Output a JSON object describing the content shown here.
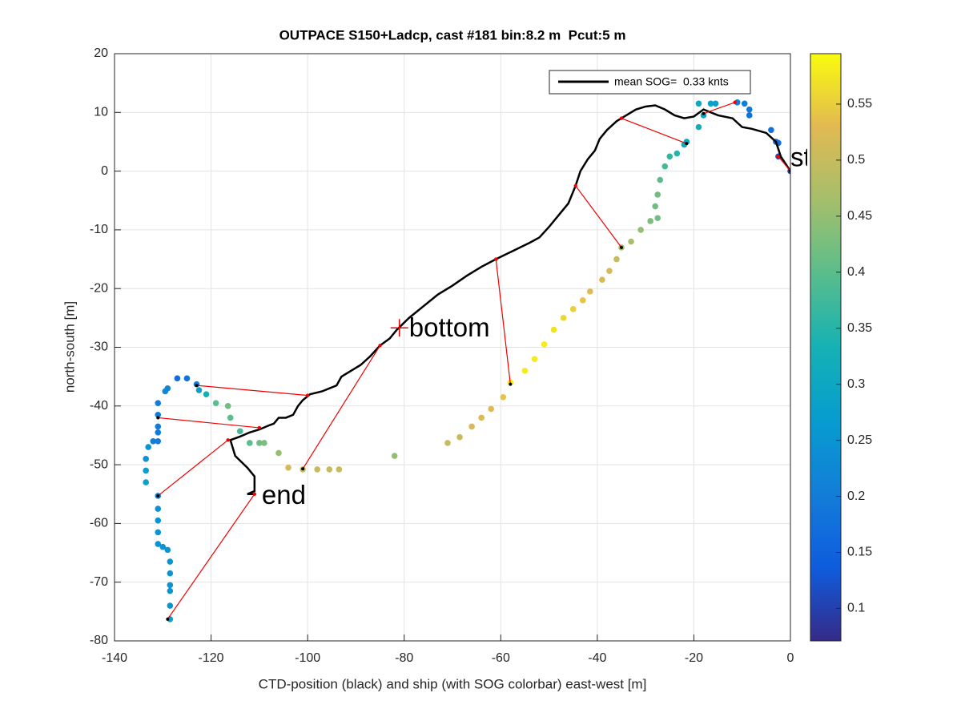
{
  "chart_data": {
    "type": "scatter",
    "title": "OUTPACE S150+Ladcp, cast #181 bin:8.2 m  Pcut:5 m",
    "xlabel": "CTD-position (black) and ship (with SOG colorbar) east-west [m]",
    "ylabel": "north-south [m]",
    "xlim": [
      -140,
      0
    ],
    "ylim": [
      -80,
      20
    ],
    "xticks": [
      -140,
      -120,
      -100,
      -80,
      -60,
      -40,
      -20,
      0
    ],
    "yticks": [
      -80,
      -70,
      -60,
      -50,
      -40,
      -30,
      -20,
      -10,
      0,
      10,
      20
    ],
    "grid": true,
    "clim": [
      0.071,
      0.595
    ],
    "cticks": [
      0.1,
      0.15,
      0.2,
      0.25,
      0.3,
      0.35,
      0.4,
      0.45,
      0.5,
      0.55
    ],
    "legend": {
      "position": "upper right",
      "entries": [
        "mean SOG=  0.33 knts"
      ]
    },
    "ship": {
      "x": [
        0,
        -2.5,
        -2.5,
        -3,
        -4,
        -8.5,
        -8.5,
        -9.5,
        -11,
        -15.5,
        -16.5,
        -18,
        -19,
        -19,
        -21.5,
        -22,
        -23.5,
        -25,
        -26,
        -27,
        -27.5,
        -28,
        -27.5,
        -29,
        -31,
        -33,
        -35,
        -36,
        -37.5,
        -39,
        -41.5,
        -43,
        -45,
        -47,
        -49,
        -51,
        -53,
        -55,
        -58,
        -59.5,
        -62,
        -64,
        -66,
        -68.5,
        -71,
        -82,
        -93.5,
        -95.5,
        -98,
        -101,
        -104,
        -106,
        -109,
        -110,
        -112,
        -114,
        -116,
        -116.5,
        -119,
        -121,
        -122.5,
        -123,
        -125,
        -127,
        -129,
        -129.5,
        -131,
        -131,
        -131,
        -131,
        -131,
        -132,
        -133,
        -133.5,
        -133.5,
        -133.5,
        -131,
        -131,
        -131,
        -131,
        -131,
        -130,
        -129,
        -128.5,
        -128.5,
        -128.5,
        -128.5,
        -128.5,
        -128.5
      ],
      "y": [
        0,
        2.5,
        4.8,
        5,
        7,
        9.5,
        10.5,
        11.5,
        11.7,
        11.5,
        11.5,
        9.5,
        7.5,
        11.5,
        5,
        4.5,
        3,
        2.5,
        0.8,
        -1.5,
        -4,
        -6,
        -8,
        -8.5,
        -10,
        -12,
        -13,
        -15,
        -17,
        -18.5,
        -20.5,
        -22,
        -23.5,
        -25,
        -27,
        -29.5,
        -32,
        -34,
        -36,
        -38.5,
        -40.5,
        -42,
        -43.5,
        -45.3,
        -46.3,
        -48.5,
        -50.8,
        -50.8,
        -50.8,
        -50.8,
        -50.5,
        -48,
        -46.3,
        -46.3,
        -46.3,
        -44.3,
        -42,
        -40,
        -39.5,
        -38,
        -37.3,
        -36.3,
        -35.3,
        -35.3,
        -37,
        -37.5,
        -39.5,
        -41.5,
        -43.5,
        -44.5,
        -46,
        -46,
        -47,
        -49,
        -51,
        -53,
        -55.3,
        -57.5,
        -59.5,
        -61.5,
        -63.5,
        -64,
        -64.5,
        -66.5,
        -68.5,
        -70.5,
        -71.5,
        -74,
        -76.3
      ],
      "values": [
        0.1,
        0.12,
        0.17,
        0.17,
        0.18,
        0.18,
        0.19,
        0.2,
        0.2,
        0.28,
        0.28,
        0.3,
        0.32,
        0.3,
        0.3,
        0.31,
        0.35,
        0.36,
        0.38,
        0.4,
        0.42,
        0.42,
        0.42,
        0.43,
        0.45,
        0.47,
        0.47,
        0.5,
        0.52,
        0.52,
        0.53,
        0.54,
        0.55,
        0.56,
        0.57,
        0.58,
        0.58,
        0.58,
        0.58,
        0.54,
        0.53,
        0.52,
        0.52,
        0.5,
        0.5,
        0.45,
        0.5,
        0.5,
        0.5,
        0.5,
        0.52,
        0.45,
        0.43,
        0.42,
        0.4,
        0.38,
        0.4,
        0.42,
        0.4,
        0.33,
        0.28,
        0.2,
        0.18,
        0.17,
        0.22,
        0.22,
        0.2,
        0.2,
        0.2,
        0.2,
        0.2,
        0.2,
        0.25,
        0.25,
        0.27,
        0.28,
        0.22,
        0.24,
        0.25,
        0.25,
        0.25,
        0.25,
        0.25,
        0.25,
        0.25,
        0.25,
        0.25,
        0.25,
        0.28
      ]
    },
    "ctd": {
      "x": [
        0,
        -2,
        -3,
        -5,
        -8,
        -10,
        -12,
        -15,
        -18,
        -20,
        -22,
        -24,
        -26,
        -28,
        -30,
        -32,
        -34,
        -36,
        -38,
        -39.5,
        -40.5,
        -42,
        -43.5,
        -44.5,
        -46,
        -48,
        -50,
        -52,
        -54,
        -56,
        -58,
        -61,
        -64,
        -67,
        -70,
        -73,
        -76,
        -79,
        -81.5,
        -83,
        -85,
        -87,
        -89,
        -91,
        -93,
        -94,
        -95.5,
        -97,
        -99.5,
        -101,
        -102,
        -103,
        -104.5,
        -106,
        -107,
        -108,
        -110,
        -112,
        -114,
        -116,
        -115,
        -112.5,
        -111,
        -111,
        -112.5,
        -111
      ],
      "y": [
        0,
        2.5,
        5,
        6.5,
        7.2,
        7.5,
        9,
        9.5,
        10.5,
        9.3,
        9,
        9.5,
        10.5,
        11.2,
        11,
        10.5,
        9.5,
        8.5,
        7,
        5.5,
        3.5,
        2,
        0,
        -2.5,
        -5.5,
        -7.5,
        -9.5,
        -11.3,
        -12.2,
        -13,
        -13.8,
        -15,
        -16.3,
        -17.8,
        -19.5,
        -21,
        -23,
        -25,
        -27,
        -28.5,
        -29.7,
        -31.5,
        -33,
        -34,
        -35,
        -36.5,
        -37,
        -37.5,
        -38,
        -39,
        -40,
        -41.5,
        -42,
        -42,
        -43,
        -43.3,
        -44,
        -44.5,
        -45.2,
        -45.8,
        -48.5,
        -50.5,
        -52,
        -54.5,
        -55,
        -55
      ]
    },
    "links": [
      {
        "x": [
          -2.5,
          0
        ],
        "y": [
          2.5,
          0
        ]
      },
      {
        "x": [
          -11.5,
          -18
        ],
        "y": [
          11.7,
          9.8
        ]
      },
      {
        "x": [
          -35,
          -21.5
        ],
        "y": [
          9,
          4.7
        ]
      },
      {
        "x": [
          -44.5,
          -35
        ],
        "y": [
          -2.5,
          -13
        ]
      },
      {
        "x": [
          -61,
          -58
        ],
        "y": [
          -15,
          -36.3
        ]
      },
      {
        "x": [
          -85,
          -101
        ],
        "y": [
          -29.7,
          -50.7
        ]
      },
      {
        "x": [
          -100,
          -123
        ],
        "y": [
          -38.2,
          -36.5
        ]
      },
      {
        "x": [
          -110,
          -131
        ],
        "y": [
          -43.7,
          -42
        ]
      },
      {
        "x": [
          -116.5,
          -131
        ],
        "y": [
          -45.8,
          -55.3
        ]
      },
      {
        "x": [
          -111,
          -129
        ],
        "y": [
          -55,
          -76.3
        ]
      }
    ],
    "annotations": [
      {
        "text": "start",
        "x": 0,
        "y": 2
      },
      {
        "text": "bottom",
        "x": -79,
        "y": -27
      },
      {
        "text": "end",
        "x": -109.5,
        "y": -55.5
      }
    ],
    "bottom_marker": {
      "x": -81,
      "y": -26.7
    }
  }
}
